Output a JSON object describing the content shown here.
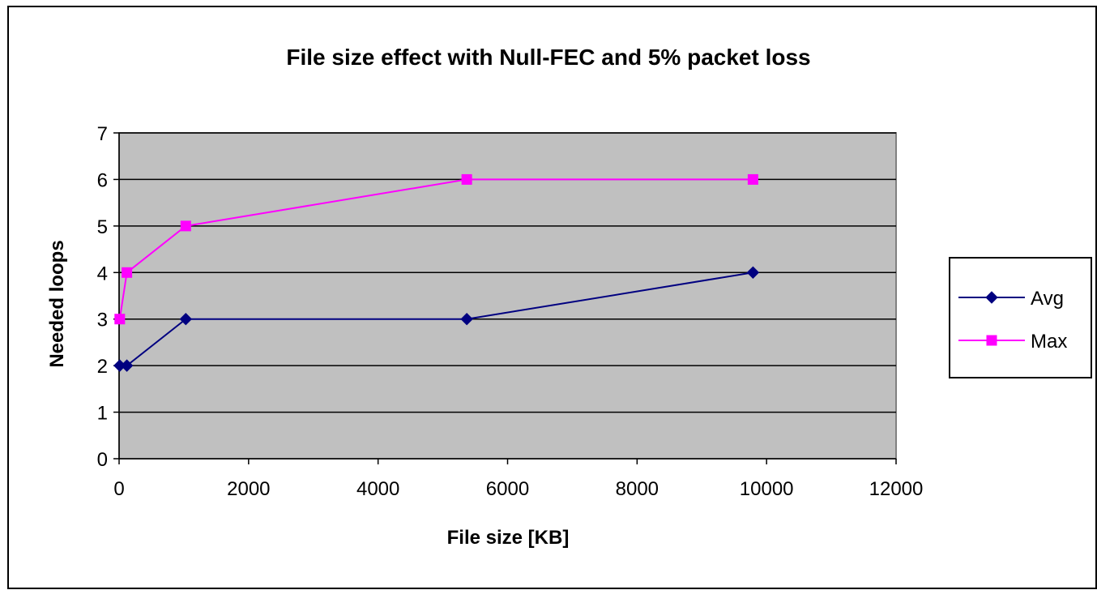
{
  "chart_data": {
    "type": "line",
    "title": "File size effect with Null-FEC and 5% packet loss",
    "xlabel": "File size [KB]",
    "ylabel": "Needed loops",
    "xlim": [
      0,
      12000
    ],
    "ylim": [
      0,
      7
    ],
    "x_ticks": [
      0,
      2000,
      4000,
      6000,
      8000,
      10000,
      12000
    ],
    "y_ticks": [
      0,
      1,
      2,
      3,
      4,
      5,
      6,
      7
    ],
    "grid": "horizontal",
    "legend": "right",
    "plot_background": "#c0c0c0",
    "series": [
      {
        "name": "Avg",
        "color": "#000080",
        "marker": "diamond",
        "x": [
          10,
          120,
          1030,
          5370,
          9790
        ],
        "y": [
          2,
          2,
          3,
          3,
          4
        ]
      },
      {
        "name": "Max",
        "color": "#ff00ff",
        "marker": "square",
        "x": [
          10,
          120,
          1030,
          5370,
          9790
        ],
        "y": [
          3,
          4,
          5,
          6,
          6
        ]
      }
    ]
  }
}
